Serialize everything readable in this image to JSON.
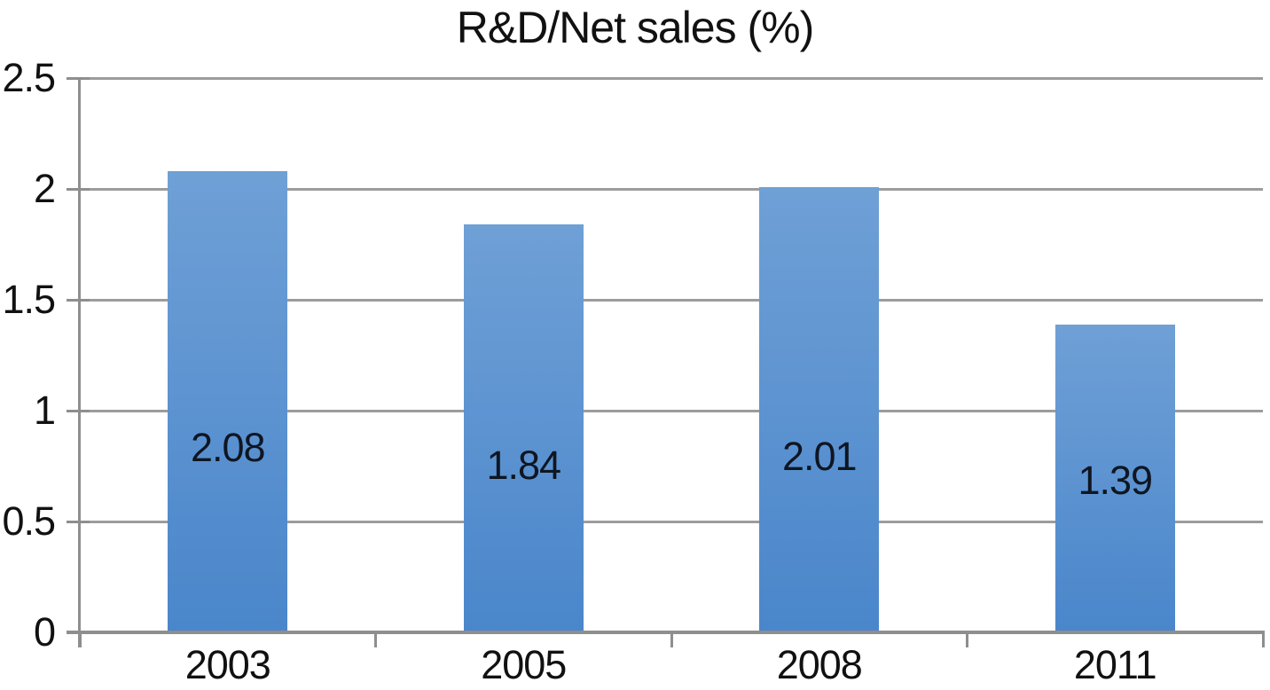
{
  "chart_data": {
    "type": "bar",
    "title": "R&D/Net sales (%)",
    "categories": [
      "2003",
      "2005",
      "2008",
      "2011"
    ],
    "values": [
      2.08,
      1.84,
      2.01,
      1.39
    ],
    "bar_labels": [
      "2.08",
      "1.84",
      "2.01",
      "1.39"
    ],
    "xlabel": "",
    "ylabel": "",
    "ylim": [
      0,
      2.5
    ],
    "ytick_step": 0.5,
    "ytick_labels": [
      "0",
      "0.5",
      "1",
      "1.5",
      "2",
      "2.5"
    ],
    "grid": true,
    "legend": false,
    "colors": {
      "bar_gradient_top": "#6FA0D6",
      "bar_gradient_bottom": "#4A86CB",
      "gridline": "#9C9C9C",
      "axis": "#8E8E8E",
      "tick_text": "#111111",
      "bar_label_text": "#0F1622",
      "background": "#FFFFFF"
    }
  }
}
